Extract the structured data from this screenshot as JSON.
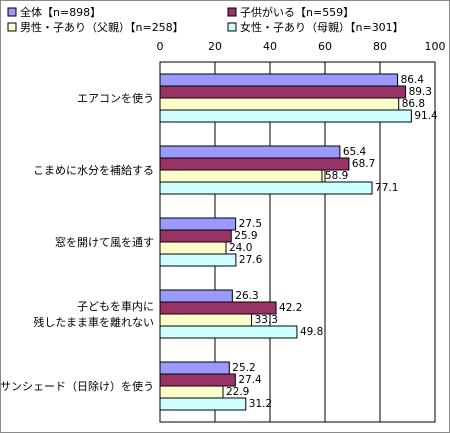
{
  "chart_data": {
    "type": "bar",
    "orientation": "horizontal",
    "title": "",
    "xlabel": "",
    "ylabel": "",
    "xlim": [
      0,
      100
    ],
    "ticks": [
      "0",
      "20",
      "40",
      "60",
      "80",
      "100"
    ],
    "grid": true,
    "legend_position": "top",
    "categories": [
      {
        "lines": [
          "エアコンを使う"
        ]
      },
      {
        "lines": [
          "こまめに水分を補給する"
        ]
      },
      {
        "lines": [
          "窓を開けて風を通す"
        ]
      },
      {
        "lines": [
          "子どもを車内に",
          "残したまま車を離れない"
        ]
      },
      {
        "lines": [
          "サンシェード（日除け）を使う"
        ]
      }
    ],
    "series": [
      {
        "name": "全体【n=898】",
        "color": "#9999ff",
        "values": [
          86.4,
          65.4,
          27.5,
          26.3,
          25.2
        ],
        "labels": [
          "86.4",
          "65.4",
          "27.5",
          "26.3",
          "25.2"
        ]
      },
      {
        "name": "子供がいる【n=559】",
        "color": "#993366",
        "values": [
          89.3,
          68.7,
          25.9,
          42.2,
          27.4
        ],
        "labels": [
          "89.3",
          "68.7",
          "25.9",
          "42.2",
          "27.4"
        ]
      },
      {
        "name": "男性・子あり（父親）【n=258】",
        "color": "#ffffcc",
        "values": [
          86.8,
          58.9,
          24.0,
          33.3,
          22.9
        ],
        "labels": [
          "86.8",
          "58.9",
          "24.0",
          "33.3",
          "22.9"
        ]
      },
      {
        "name": "女性・子あり（母親）【n=301】",
        "color": "#ccffff",
        "values": [
          91.4,
          77.1,
          27.6,
          49.8,
          31.2
        ],
        "labels": [
          "91.4",
          "77.1",
          "27.6",
          "49.8",
          "31.2"
        ]
      }
    ]
  }
}
